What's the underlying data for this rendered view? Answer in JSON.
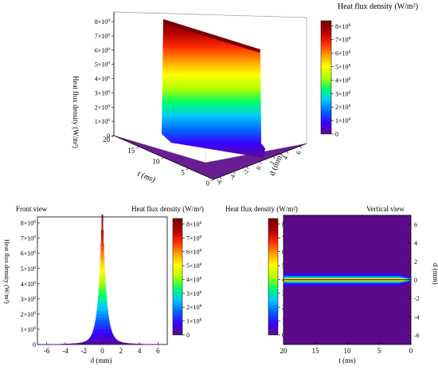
{
  "colormap": [
    "#5b0a8a",
    "#3a00ff",
    "#0066ff",
    "#00c8ff",
    "#00ff66",
    "#b4ff00",
    "#ffff00",
    "#ff9b00",
    "#ff2a00",
    "#b00000",
    "#7a0000"
  ],
  "colorbar": {
    "title": "Heat flux density (W/m²)",
    "tick_base": "×10",
    "tick_exp": "8",
    "ticks": [
      0,
      1,
      2,
      3,
      4,
      5,
      6,
      7,
      8
    ]
  },
  "chart_data": [
    {
      "type": "surface",
      "title": "",
      "zlabel": "Heat flux density (W/m²)",
      "xlabel": "t (ms)",
      "ylabel": "d (mm)",
      "x_ticks": [
        0,
        5,
        10,
        15,
        20
      ],
      "y_ticks": [
        -6,
        -4,
        -2,
        0,
        2,
        4,
        6
      ],
      "z_ticks": [
        0,
        1,
        2,
        3,
        4,
        5,
        6,
        7,
        8
      ],
      "z_unit": "×10^8",
      "xlim": [
        0,
        20
      ],
      "ylim": [
        -7,
        7
      ],
      "zlim": [
        0,
        8.4
      ],
      "peak_z_at_t": [
        [
          0,
          0
        ],
        [
          1.5,
          7.2
        ],
        [
          5,
          7.4
        ],
        [
          10,
          7.7
        ],
        [
          15,
          8.0
        ],
        [
          20,
          8.2
        ]
      ]
    },
    {
      "type": "line",
      "title": "Front view",
      "xlabel": "d (mm)",
      "ylabel": "Heat flux density (W/m²)",
      "x_ticks": [
        -6,
        -4,
        -2,
        0,
        2,
        4,
        6
      ],
      "y_ticks": [
        0,
        1,
        2,
        3,
        4,
        5,
        6,
        7,
        8
      ],
      "y_unit": "×10^8",
      "xlim": [
        -7,
        7
      ],
      "ylim": [
        0,
        8.4
      ],
      "peak": 8.2,
      "decay_mm": 0.35
    },
    {
      "type": "heatmap",
      "title": "Vertical  view",
      "xlabel": "t (ms)",
      "ylabel": "d (mm)",
      "x_ticks": [
        20,
        15,
        10,
        5,
        0
      ],
      "y_ticks": [
        -6,
        -4,
        -2,
        0,
        2,
        4,
        6
      ],
      "xlim": [
        20,
        0
      ],
      "ylim": [
        -7,
        7
      ],
      "band_halfwidth_mm": 0.5,
      "taper_start_ms": 2
    }
  ]
}
